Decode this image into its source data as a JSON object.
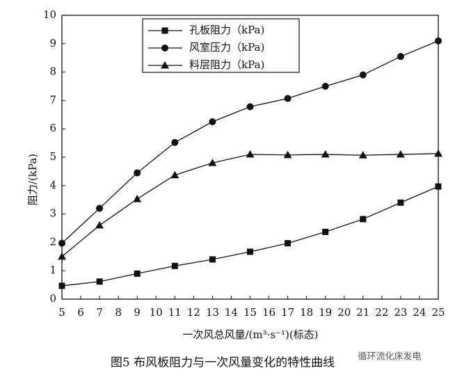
{
  "chart_data": {
    "type": "line",
    "x_label": "一次风总风量/(m³·s⁻¹)(标态)",
    "y_label": "阻力/(kPa)",
    "caption": "图5   布风板阻力与一次风量变化的特性曲线",
    "watermark": "循环流化床发电",
    "x": [
      5,
      7,
      9,
      11,
      13,
      15,
      17,
      19,
      21,
      23,
      25
    ],
    "series": [
      {
        "name": "孔板阻力（kPa)",
        "color": "#111111",
        "marker": "square",
        "values": [
          0.47,
          0.62,
          0.9,
          1.17,
          1.4,
          1.67,
          1.97,
          2.37,
          2.82,
          3.4,
          3.97
        ]
      },
      {
        "name": "风室压力（kPa)",
        "color": "#111111",
        "marker": "circle",
        "values": [
          1.97,
          3.2,
          4.45,
          5.52,
          6.25,
          6.78,
          7.07,
          7.5,
          7.9,
          8.55,
          9.1
        ]
      },
      {
        "name": "料层阻力（kPa)",
        "color": "#111111",
        "marker": "triangle",
        "values": [
          1.5,
          2.6,
          3.53,
          4.37,
          4.8,
          5.1,
          5.08,
          5.1,
          5.07,
          5.1,
          5.13
        ]
      }
    ],
    "xlim": [
      5,
      25
    ],
    "xticks": [
      5,
      6,
      7,
      8,
      9,
      10,
      11,
      12,
      13,
      14,
      15,
      16,
      17,
      18,
      19,
      20,
      21,
      22,
      23,
      24,
      25
    ],
    "ylim": [
      0,
      10
    ],
    "yticks": [
      0,
      1,
      2,
      3,
      4,
      5,
      6,
      7,
      8,
      9,
      10
    ]
  }
}
